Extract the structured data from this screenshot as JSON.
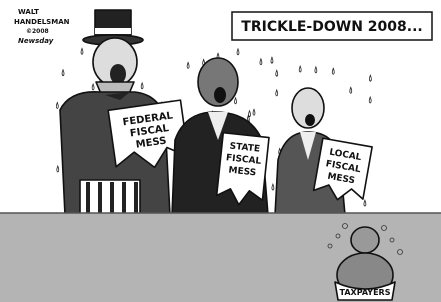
{
  "caption": "TRICKLE-DOWN 2008...",
  "signature": {
    "lines": [
      "WALT",
      "HANDELSMAN",
      "©2008",
      "Newsday"
    ]
  },
  "signs": [
    {
      "lines": [
        "FEDERAL",
        "FISCAL",
        "MESS"
      ]
    },
    {
      "lines": [
        "STATE",
        "FISCAL",
        "MESS"
      ]
    },
    {
      "lines": [
        "LOCAL",
        "FISCAL",
        "MESS"
      ]
    }
  ],
  "taxpayer_label": "TAXPAYERS"
}
